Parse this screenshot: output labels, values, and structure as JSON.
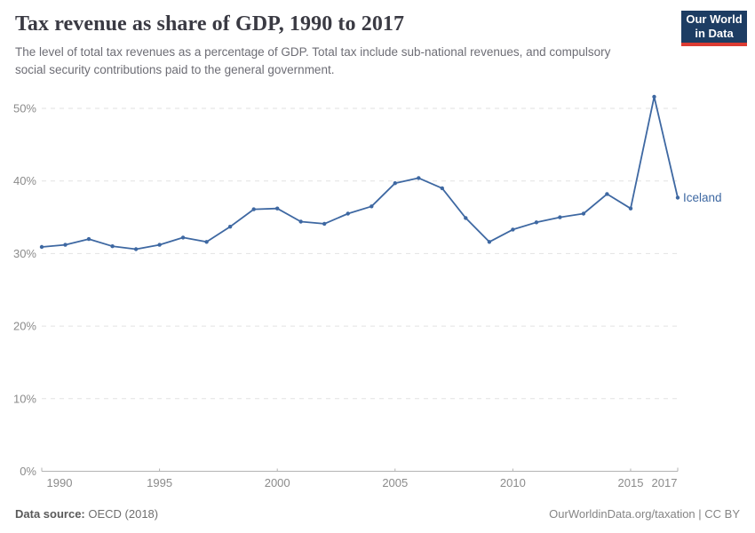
{
  "header": {
    "title": "Tax revenue as share of GDP, 1990 to 2017",
    "subtitle": "The level of total tax revenues as a percentage of GDP. Total tax include sub-national revenues, and compulsory social security contributions paid to the general government."
  },
  "logo": {
    "line1": "Our World",
    "line2": "in Data",
    "bg_color": "#1d3d63",
    "accent_color": "#dc3b32"
  },
  "chart_data": {
    "type": "line",
    "title": "Tax revenue as share of GDP, 1990 to 2017",
    "xlabel": "",
    "ylabel": "",
    "ylim": [
      0,
      52
    ],
    "xlim": [
      1990,
      2017
    ],
    "grid": "horizontal-dashed",
    "legend_position": "end-of-line",
    "yticks": [
      {
        "value": 0,
        "label": "0%"
      },
      {
        "value": 10,
        "label": "10%"
      },
      {
        "value": 20,
        "label": "20%"
      },
      {
        "value": 30,
        "label": "30%"
      },
      {
        "value": 40,
        "label": "40%"
      },
      {
        "value": 50,
        "label": "50%"
      }
    ],
    "xticks": [
      {
        "value": 1990,
        "label": "1990"
      },
      {
        "value": 1995,
        "label": "1995"
      },
      {
        "value": 2000,
        "label": "2000"
      },
      {
        "value": 2005,
        "label": "2005"
      },
      {
        "value": 2010,
        "label": "2010"
      },
      {
        "value": 2015,
        "label": "2015"
      },
      {
        "value": 2017,
        "label": "2017"
      }
    ],
    "series": [
      {
        "name": "Iceland",
        "color": "#3e68a2",
        "x": [
          1990,
          1991,
          1992,
          1993,
          1994,
          1995,
          1996,
          1997,
          1998,
          1999,
          2000,
          2001,
          2002,
          2003,
          2004,
          2005,
          2006,
          2007,
          2008,
          2009,
          2010,
          2011,
          2012,
          2013,
          2014,
          2015,
          2016,
          2017
        ],
        "values": [
          30.9,
          31.2,
          32.0,
          31.0,
          30.6,
          31.2,
          32.2,
          31.6,
          33.7,
          36.1,
          36.2,
          34.4,
          34.1,
          35.5,
          36.5,
          39.7,
          40.4,
          39.0,
          34.9,
          31.6,
          33.3,
          34.3,
          35.0,
          35.5,
          38.2,
          36.2,
          51.6,
          37.7
        ]
      }
    ]
  },
  "footer": {
    "data_source_label": "Data source:",
    "data_source_value": " OECD (2018)",
    "credit": "OurWorldinData.org/taxation | CC BY"
  }
}
